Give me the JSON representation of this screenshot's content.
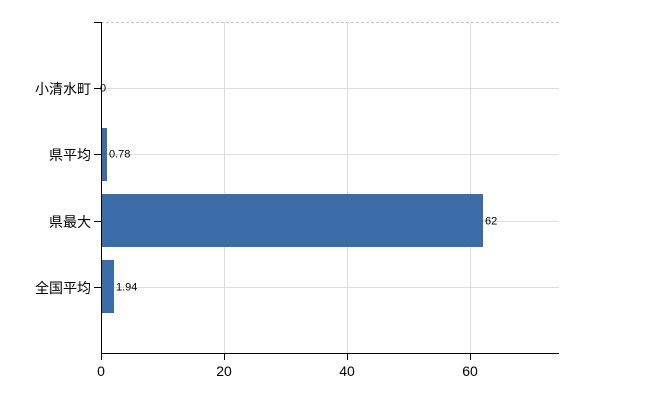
{
  "chart_data": {
    "type": "bar",
    "orientation": "horizontal",
    "title": "",
    "xlabel": "",
    "ylabel": "",
    "categories": [
      "小清水町",
      "県平均",
      "県最大",
      "全国平均"
    ],
    "values": [
      0,
      0.78,
      62,
      1.94
    ],
    "value_labels": [
      "0",
      "0.78",
      "62",
      "1.94"
    ],
    "xticks": [
      0,
      20,
      40,
      60
    ],
    "xtick_labels": [
      "0",
      "20",
      "40",
      "60"
    ],
    "xlim": [
      0,
      74.5
    ],
    "grid": "on",
    "legend": "none",
    "colors": {
      "bar": "#3b6ca7",
      "gridline": "#d9ded9",
      "top_border_dashed": "#c6c6c6",
      "axis": "#000000",
      "text": "#000000",
      "background": "#ffffff"
    }
  }
}
